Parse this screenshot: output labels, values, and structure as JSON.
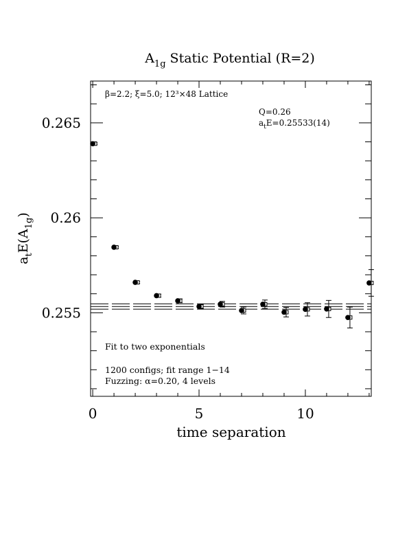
{
  "chart_data": {
    "type": "scatter",
    "title_main": "A",
    "title_sub": "1g",
    "title_rest": " Static Potential (R=2)",
    "xlabel": "time separation",
    "ylabel": {
      "a": "a",
      "t": "t",
      "e": "E(A",
      "sub": "1g",
      "close": ")"
    },
    "xlim": [
      -0.1,
      13.1
    ],
    "ylim": [
      0.2506,
      0.2672
    ],
    "xticks": [
      {
        "value": 0,
        "label": "0"
      },
      {
        "value": 5,
        "label": "5"
      },
      {
        "value": 10,
        "label": "10"
      }
    ],
    "yticks": [
      {
        "value": 0.255,
        "label": "0.255"
      },
      {
        "value": 0.26,
        "label": "0.26"
      },
      {
        "value": 0.265,
        "label": "0.265"
      }
    ],
    "annotations": {
      "lattice": "β=2.2; ξ=5.0; 12³×48 Lattice",
      "q": "Q=0.26",
      "energy": {
        "a": "a",
        "t": "t",
        "rest": "E=0.25533(14)"
      },
      "fit": "Fit to two exponentials",
      "configs": "1200 configs; fit range 1−14",
      "fuzzing": "Fuzzing: α=0.20, 4 levels"
    },
    "fit_band": {
      "center": 0.25533,
      "error": 0.00014,
      "x_range": [
        1,
        14
      ]
    },
    "points": [
      {
        "x": 0,
        "y": 0.2639,
        "err": 5e-05
      },
      {
        "x": 1,
        "y": 0.25845,
        "err": 5e-05
      },
      {
        "x": 2,
        "y": 0.2566,
        "err": 6e-05
      },
      {
        "x": 3,
        "y": 0.2559,
        "err": 8e-05
      },
      {
        "x": 4,
        "y": 0.25563,
        "err": 0.0001
      },
      {
        "x": 5,
        "y": 0.25533,
        "err": 0.00012
      },
      {
        "x": 6,
        "y": 0.25545,
        "err": 0.00015
      },
      {
        "x": 7,
        "y": 0.25512,
        "err": 0.00018
      },
      {
        "x": 8,
        "y": 0.25545,
        "err": 0.00022
      },
      {
        "x": 9,
        "y": 0.25503,
        "err": 0.00025
      },
      {
        "x": 10,
        "y": 0.25518,
        "err": 0.00035
      },
      {
        "x": 11,
        "y": 0.2552,
        "err": 0.00045
      },
      {
        "x": 12,
        "y": 0.25475,
        "err": 0.00055
      },
      {
        "x": 13,
        "y": 0.25657,
        "err": 0.0007
      }
    ],
    "grid": false,
    "legend": "none"
  }
}
